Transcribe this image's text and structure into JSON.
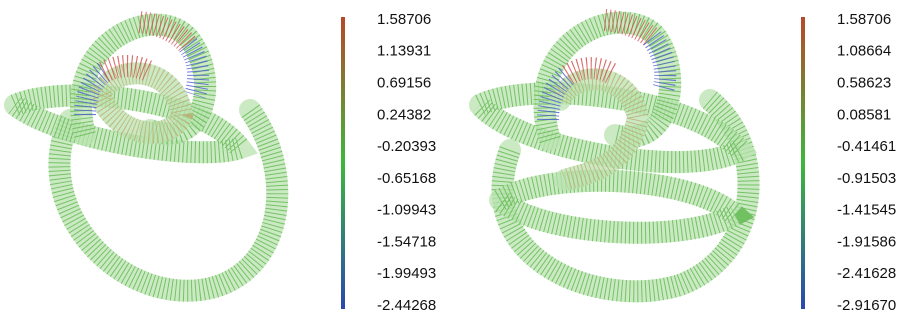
{
  "figures": [
    {
      "colorbar": {
        "lim": [
          -2.44268,
          1.58706
        ],
        "ticks": [
          1.58706,
          1.13931,
          0.69156,
          0.24382,
          -0.20393,
          -0.65168,
          -1.09943,
          -1.54718,
          -1.99493,
          -2.44268
        ]
      }
    },
    {
      "colorbar": {
        "lim": [
          -2.9167,
          1.58706
        ],
        "ticks": [
          1.58706,
          1.08664,
          0.58623,
          0.08581,
          -0.41461,
          -0.91503,
          -1.41545,
          -1.91586,
          -2.41628,
          {
            "value": -2.9167,
            "label": "-2.91670"
          }
        ]
      }
    }
  ]
}
